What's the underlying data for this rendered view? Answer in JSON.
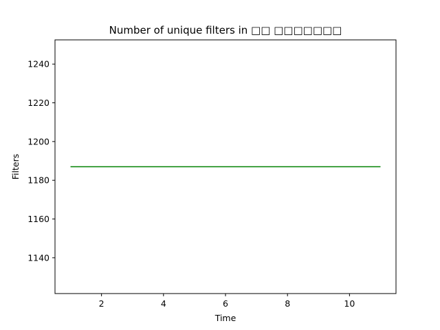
{
  "chart_data": {
    "type": "line",
    "title": "Number of unique filters in □□ □□□□□□□",
    "xlabel": "Time",
    "ylabel": "Filters",
    "xlim": [
      0.5,
      11.5
    ],
    "ylim": [
      1121.5,
      1252.5
    ],
    "xticks": [
      2,
      4,
      6,
      8,
      10
    ],
    "yticks": [
      1140,
      1160,
      1180,
      1200,
      1220,
      1240
    ],
    "grid": false,
    "legend": "none",
    "series": [
      {
        "color": "#008000",
        "x": [
          1,
          2,
          3,
          4,
          5,
          6,
          7,
          8,
          9,
          10,
          11
        ],
        "y": [
          1187,
          1187,
          1187,
          1187,
          1187,
          1187,
          1187,
          1187,
          1187,
          1187,
          1187
        ]
      }
    ]
  }
}
